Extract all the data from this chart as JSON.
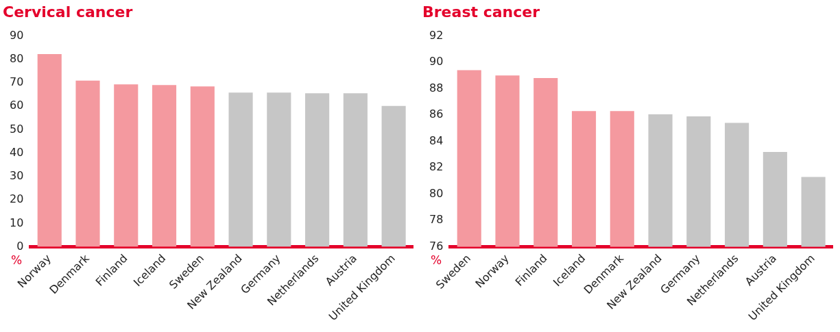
{
  "chart_data": [
    {
      "type": "bar",
      "title": "Cervical cancer",
      "ylabel": "%",
      "categories": [
        "Norway",
        "Denmark",
        "Finland",
        "Iceland",
        "Sweden",
        "New Zealand",
        "Germany",
        "Netherlands",
        "Austria",
        "United Kingdom"
      ],
      "values": [
        82.2,
        70.9,
        69.3,
        69.0,
        68.4,
        65.8,
        65.8,
        65.5,
        65.5,
        60.1
      ],
      "colors": [
        "#f4999f",
        "#f4999f",
        "#f4999f",
        "#f4999f",
        "#f4999f",
        "#c6c6c6",
        "#c6c6c6",
        "#c6c6c6",
        "#c6c6c6",
        "#c6c6c6"
      ],
      "ylim": [
        0,
        90
      ],
      "yticks": [
        0,
        10,
        20,
        30,
        40,
        50,
        60,
        70,
        80,
        90
      ],
      "grid": false,
      "legend": false
    },
    {
      "type": "bar",
      "title": "Breast cancer",
      "ylabel": "%",
      "categories": [
        "Sweden",
        "Norway",
        "Finland",
        "Iceland",
        "Denmark",
        "New Zealand",
        "Germany",
        "Netherlands",
        "Austria",
        "United Kingdom"
      ],
      "values": [
        89.4,
        89.0,
        88.8,
        86.3,
        86.3,
        86.05,
        85.9,
        85.4,
        83.2,
        81.3
      ],
      "colors": [
        "#f4999f",
        "#f4999f",
        "#f4999f",
        "#f4999f",
        "#f4999f",
        "#c6c6c6",
        "#c6c6c6",
        "#c6c6c6",
        "#c6c6c6",
        "#c6c6c6"
      ],
      "ylim": [
        76,
        92
      ],
      "yticks": [
        76,
        78,
        80,
        82,
        84,
        86,
        88,
        90,
        92
      ],
      "grid": false,
      "legend": false
    }
  ]
}
